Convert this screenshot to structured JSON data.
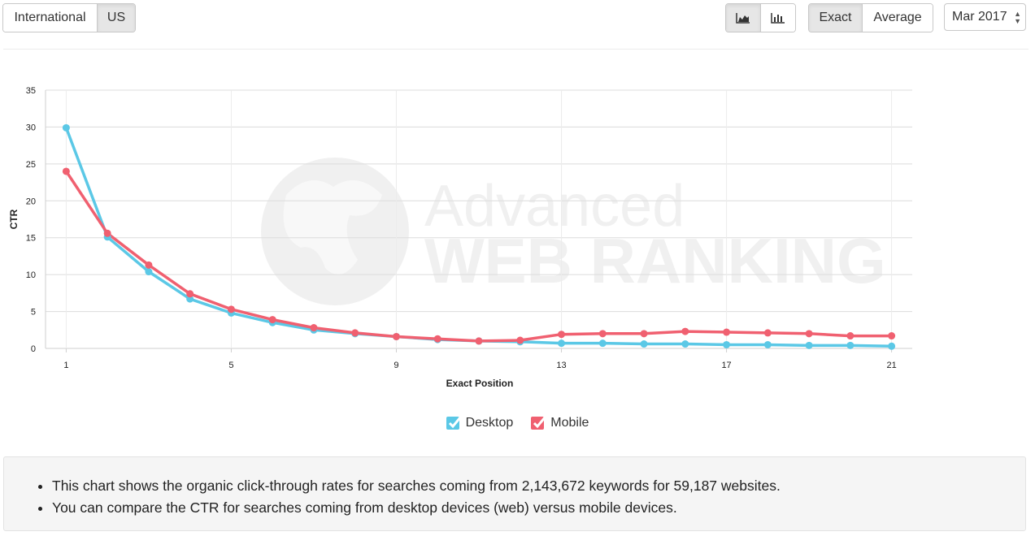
{
  "region_toggle": {
    "items": [
      "International",
      "US"
    ],
    "active": 1
  },
  "view_toggle": {
    "icons": [
      "area-chart-icon",
      "bar-chart-icon"
    ]
  },
  "mode_toggle": {
    "items": [
      "Exact",
      "Average"
    ],
    "active": 0
  },
  "date_select": {
    "value": "Mar 2017"
  },
  "watermark": {
    "line1": "Advanced",
    "line2": "WEB RANKING"
  },
  "chart_data": {
    "type": "line",
    "xlabel": "Exact Position",
    "ylabel": "CTR",
    "x": [
      1,
      2,
      3,
      4,
      5,
      6,
      7,
      8,
      9,
      10,
      11,
      12,
      13,
      14,
      15,
      16,
      17,
      18,
      19,
      20,
      21
    ],
    "xticks": [
      1,
      5,
      9,
      13,
      17,
      21
    ],
    "ylim": [
      0,
      35
    ],
    "yticks": [
      0,
      5,
      10,
      15,
      20,
      25,
      30,
      35
    ],
    "grid": true,
    "series": [
      {
        "name": "Desktop",
        "color": "#5bc8e6",
        "values": [
          29.9,
          15.1,
          10.4,
          6.7,
          4.8,
          3.5,
          2.5,
          2.0,
          1.6,
          1.2,
          1.0,
          0.9,
          0.7,
          0.7,
          0.6,
          0.6,
          0.5,
          0.5,
          0.4,
          0.4,
          0.3
        ]
      },
      {
        "name": "Mobile",
        "color": "#f06070",
        "values": [
          24.0,
          15.6,
          11.3,
          7.4,
          5.3,
          3.9,
          2.8,
          2.1,
          1.6,
          1.3,
          1.0,
          1.1,
          1.9,
          2.0,
          2.0,
          2.3,
          2.2,
          2.1,
          2.0,
          1.7,
          1.7
        ]
      }
    ],
    "legend_position": "bottom"
  },
  "info": {
    "bullets": [
      "This chart shows the organic click-through rates for searches coming from 2,143,672 keywords for 59,187 websites.",
      "You can compare the CTR for searches coming from desktop devices (web) versus mobile devices."
    ]
  }
}
